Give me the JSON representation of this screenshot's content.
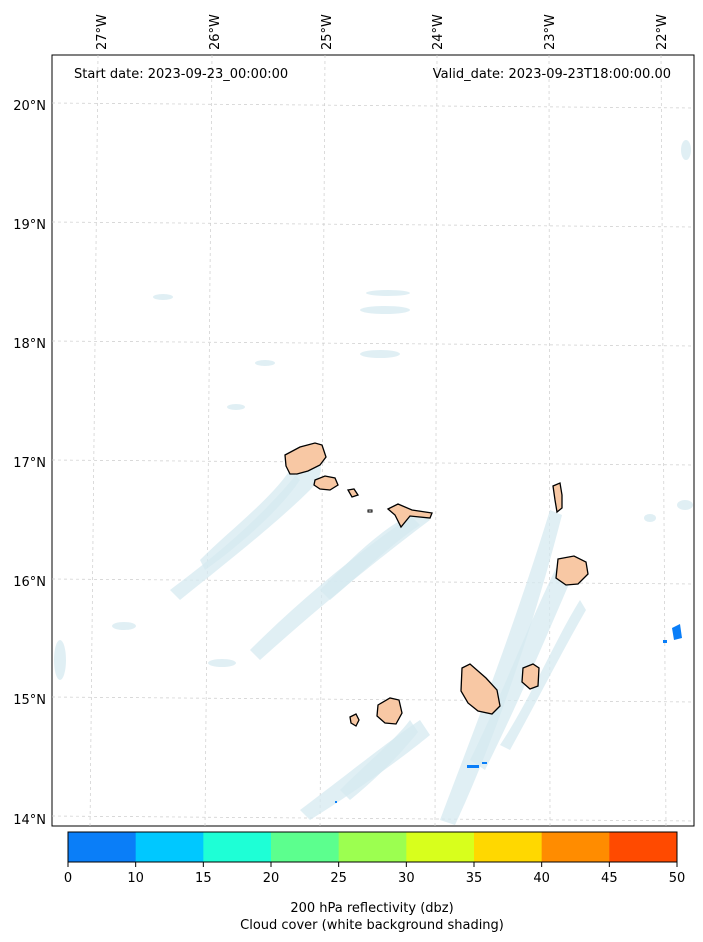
{
  "header": {
    "start_date": "Start date: 2023-09-23_00:00:00",
    "valid_date": "Valid_date: 2023-09-23T18:00:00.00"
  },
  "map": {
    "lon_labels": [
      "27°W",
      "26°W",
      "25°W",
      "24°W",
      "23°W",
      "22°W"
    ],
    "lat_labels": [
      "20°N",
      "19°N",
      "18°N",
      "17°N",
      "16°N",
      "15°N",
      "14°N"
    ],
    "grid": "on"
  },
  "colorbar": {
    "ticks": [
      "0",
      "10",
      "15",
      "20",
      "25",
      "30",
      "35",
      "40",
      "45",
      "50"
    ],
    "colors": [
      "#0a7ef8",
      "#00c8ff",
      "#1effd6",
      "#5cff8e",
      "#9cff50",
      "#d8ff1c",
      "#ffd800",
      "#ff8c00",
      "#ff4a00"
    ],
    "label_line1": "200 hPa reflectivity (dbz)",
    "label_line2": "Cloud cover (white background shading)"
  }
}
